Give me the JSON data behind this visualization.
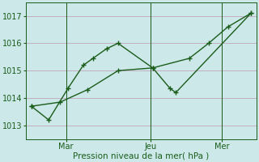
{
  "xlabel": "Pression niveau de la mer( hPa )",
  "bg_color": "#cce8e8",
  "grid_color": "#c0afc0",
  "line_color": "#1a5c1a",
  "ylim": [
    1012.5,
    1017.5
  ],
  "yticks": [
    1013,
    1014,
    1015,
    1016,
    1017
  ],
  "xlim": [
    0,
    12
  ],
  "line1_x": [
    0.3,
    1.2,
    2.2,
    3.0,
    3.5,
    4.2,
    4.8,
    6.6,
    7.5,
    7.8,
    11.7
  ],
  "line1_y": [
    1013.7,
    1013.2,
    1014.35,
    1015.2,
    1015.45,
    1015.8,
    1016.0,
    1015.1,
    1014.35,
    1014.2,
    1017.1
  ],
  "line2_x": [
    0.3,
    1.8,
    3.2,
    4.8,
    6.6,
    8.5,
    9.5,
    10.5,
    11.7
  ],
  "line2_y": [
    1013.7,
    1013.85,
    1014.3,
    1015.0,
    1015.1,
    1015.45,
    1016.0,
    1016.6,
    1017.1
  ],
  "vline1_x": 2.1,
  "vline2_x": 6.5,
  "vline3_x": 10.2,
  "xtick_labels": [
    "Mar",
    "Jeu",
    "Mer"
  ],
  "xtick_positions": [
    2.1,
    6.5,
    10.2
  ],
  "marker_size": 3.5,
  "line_width": 1.0
}
